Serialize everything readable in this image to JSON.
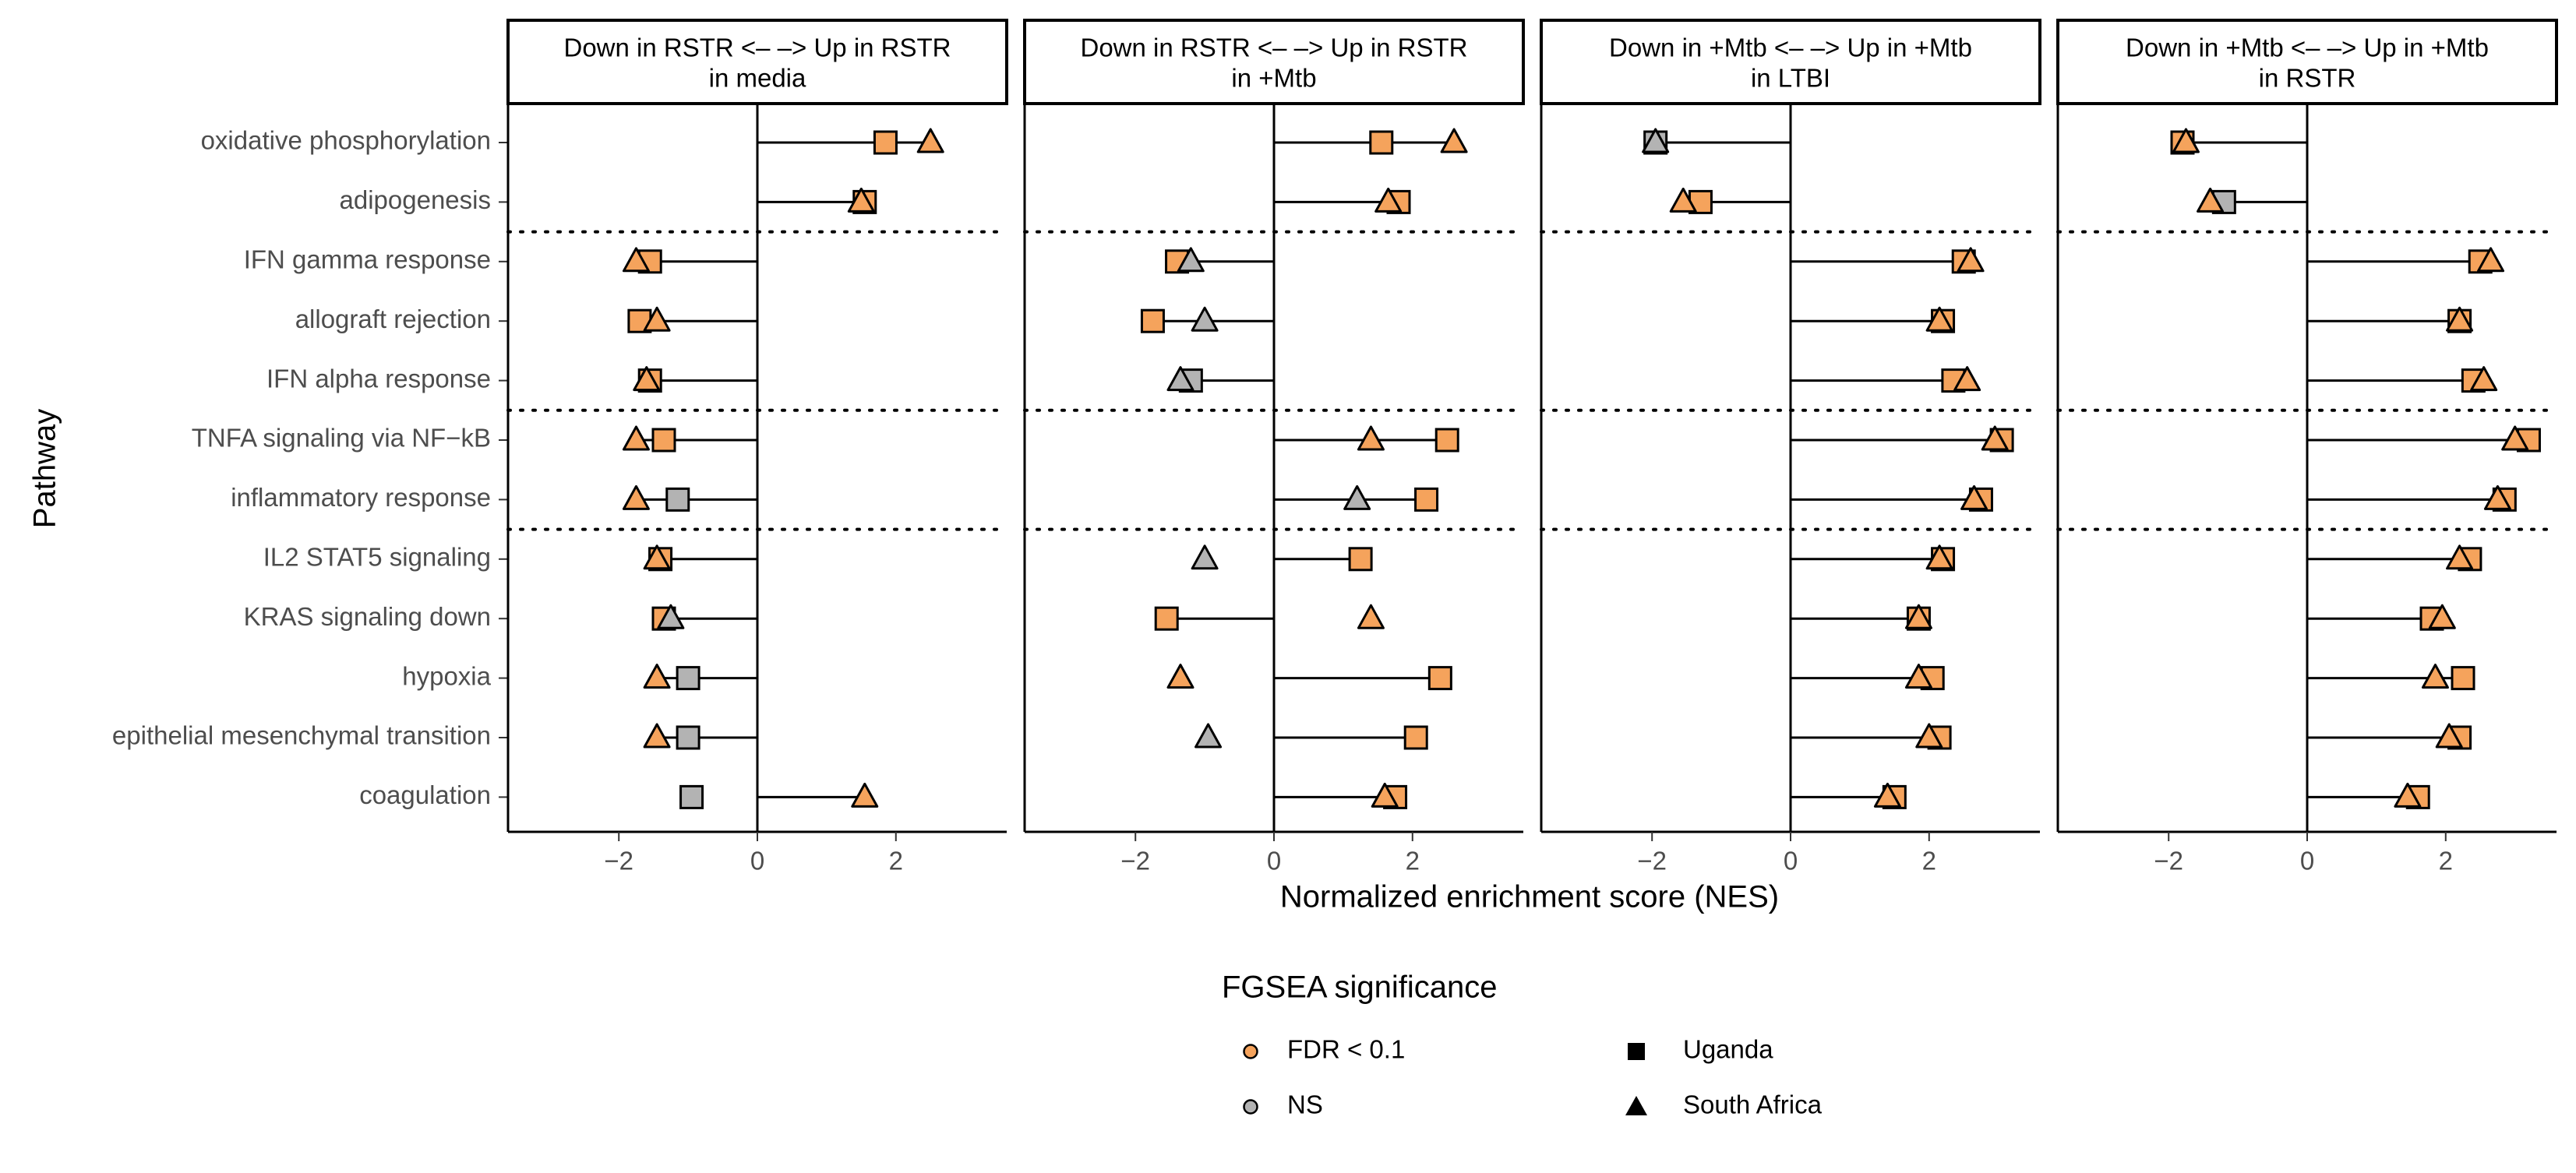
{
  "chart_data": {
    "type": "dot",
    "ylabel": "Pathway",
    "xlabel": "Normalized enrichment score (NES)",
    "xlim": [
      -3.6,
      3.6
    ],
    "xticks": [
      -2,
      0,
      2
    ],
    "xtick_labels": [
      "−2",
      "0",
      "2"
    ],
    "pathways": [
      "oxidative phosphorylation",
      "adipogenesis",
      "IFN gamma response",
      "allograft rejection",
      "IFN alpha response",
      "TNFA signaling via NF−kB",
      "inflammatory response",
      "IL2 STAT5 signaling",
      "KRAS signaling down",
      "hypoxia",
      "epithelial mesenchymal transition",
      "coagulation"
    ],
    "group_dividers_after": [
      1,
      4,
      6
    ],
    "legend": {
      "title": "FGSEA significance",
      "color_items": [
        {
          "label": "FDR < 0.1",
          "color": "#f5a35c"
        },
        {
          "label": "NS",
          "color": "#b3b3b3"
        }
      ],
      "shape_items": [
        {
          "label": "Uganda",
          "shape": "square"
        },
        {
          "label": "South Africa",
          "shape": "triangle"
        }
      ]
    },
    "colors": {
      "FDR": "#f5a35c",
      "NS": "#b3b3b3"
    },
    "panels": [
      {
        "strip_line1": "Down in RSTR <–  –> Up in RSTR",
        "strip_line2": "in media",
        "series": {
          "Uganda": {
            "values": [
              1.85,
              1.55,
              -1.55,
              -1.7,
              -1.55,
              -1.35,
              -1.15,
              -1.4,
              -1.35,
              -1.0,
              -1.0,
              -0.95
            ],
            "sig": [
              "FDR",
              "FDR",
              "FDR",
              "FDR",
              "FDR",
              "FDR",
              "NS",
              "FDR",
              "FDR",
              "NS",
              "NS",
              "NS"
            ]
          },
          "South Africa": {
            "values": [
              2.5,
              1.5,
              -1.75,
              -1.45,
              -1.6,
              -1.75,
              -1.75,
              -1.45,
              -1.25,
              -1.45,
              -1.45,
              1.55
            ],
            "sig": [
              "FDR",
              "FDR",
              "FDR",
              "FDR",
              "FDR",
              "FDR",
              "FDR",
              "FDR",
              "NS",
              "FDR",
              "FDR",
              "FDR"
            ]
          }
        }
      },
      {
        "strip_line1": "Down in RSTR <–  –> Up in RSTR",
        "strip_line2": "in +Mtb",
        "series": {
          "Uganda": {
            "values": [
              1.55,
              1.8,
              -1.4,
              -1.75,
              -1.2,
              2.5,
              2.2,
              1.25,
              -1.55,
              2.4,
              2.05,
              1.75
            ],
            "sig": [
              "FDR",
              "FDR",
              "FDR",
              "FDR",
              "NS",
              "FDR",
              "FDR",
              "FDR",
              "FDR",
              "FDR",
              "FDR",
              "FDR"
            ]
          },
          "South Africa": {
            "values": [
              2.6,
              1.65,
              -1.2,
              -1.0,
              -1.35,
              1.4,
              1.2,
              -1.0,
              1.4,
              -1.35,
              -0.95,
              1.6
            ],
            "sig": [
              "FDR",
              "FDR",
              "NS",
              "NS",
              "NS",
              "FDR",
              "NS",
              "NS",
              "FDR",
              "FDR",
              "NS",
              "FDR"
            ]
          }
        }
      },
      {
        "strip_line1": "Down in +Mtb <–  –> Up in +Mtb",
        "strip_line2": "in LTBI",
        "series": {
          "Uganda": {
            "values": [
              -1.95,
              -1.3,
              2.5,
              2.2,
              2.35,
              3.05,
              2.75,
              2.2,
              1.85,
              2.05,
              2.15,
              1.5
            ],
            "sig": [
              "NS",
              "FDR",
              "FDR",
              "FDR",
              "FDR",
              "FDR",
              "FDR",
              "FDR",
              "FDR",
              "FDR",
              "FDR",
              "FDR"
            ]
          },
          "South Africa": {
            "values": [
              -1.95,
              -1.55,
              2.6,
              2.15,
              2.55,
              2.95,
              2.65,
              2.15,
              1.85,
              1.85,
              2.0,
              1.4
            ],
            "sig": [
              "NS",
              "FDR",
              "FDR",
              "FDR",
              "FDR",
              "FDR",
              "FDR",
              "FDR",
              "FDR",
              "FDR",
              "FDR",
              "FDR"
            ]
          }
        }
      },
      {
        "strip_line1": "Down in +Mtb <–  –> Up in +Mtb",
        "strip_line2": "in RSTR",
        "series": {
          "Uganda": {
            "values": [
              -1.8,
              -1.2,
              2.5,
              2.2,
              2.4,
              3.2,
              2.85,
              2.35,
              1.8,
              2.25,
              2.2,
              1.6
            ],
            "sig": [
              "FDR",
              "NS",
              "FDR",
              "FDR",
              "FDR",
              "FDR",
              "FDR",
              "FDR",
              "FDR",
              "FDR",
              "FDR",
              "FDR"
            ]
          },
          "South Africa": {
            "values": [
              -1.75,
              -1.4,
              2.65,
              2.2,
              2.55,
              3.0,
              2.75,
              2.2,
              1.95,
              1.85,
              2.05,
              1.45
            ],
            "sig": [
              "FDR",
              "FDR",
              "FDR",
              "FDR",
              "FDR",
              "FDR",
              "FDR",
              "FDR",
              "FDR",
              "FDR",
              "FDR",
              "FDR"
            ]
          }
        }
      }
    ]
  }
}
